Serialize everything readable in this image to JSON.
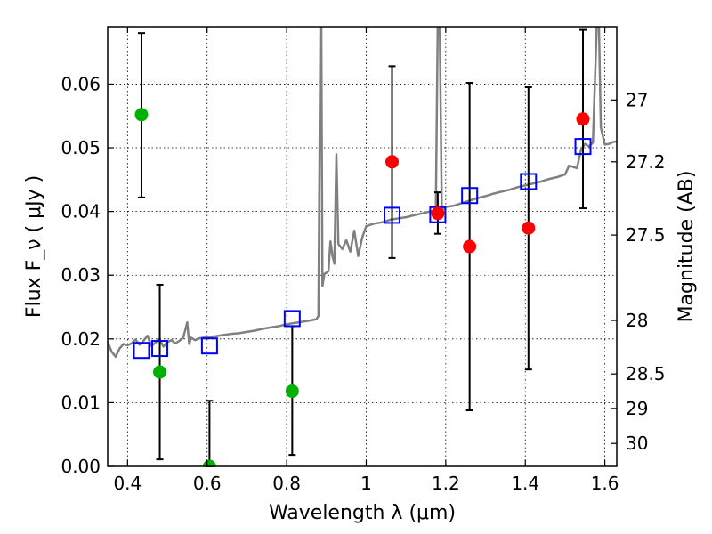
{
  "chart_data": {
    "type": "scatter",
    "title": "",
    "xlabel": "Wavelength  λ (μm)",
    "ylabel": "Flux  F_ν  ( μJy )",
    "ylabel_right": "Magnitude (AB)",
    "xlim": [
      0.35,
      1.63
    ],
    "ylim": [
      0.0,
      0.069
    ],
    "grid": true,
    "x_ticks": [
      {
        "value": 0.4,
        "label": "0.4"
      },
      {
        "value": 0.6,
        "label": "0.6"
      },
      {
        "value": 0.8,
        "label": "0.8"
      },
      {
        "value": 1.0,
        "label": "1"
      },
      {
        "value": 1.2,
        "label": "1.2"
      },
      {
        "value": 1.4,
        "label": "1.4"
      },
      {
        "value": 1.6,
        "label": "1.6"
      }
    ],
    "y_ticks": [
      {
        "value": 0.0,
        "label": "0.00"
      },
      {
        "value": 0.01,
        "label": "0.01"
      },
      {
        "value": 0.02,
        "label": "0.02"
      },
      {
        "value": 0.03,
        "label": "0.03"
      },
      {
        "value": 0.04,
        "label": "0.04"
      },
      {
        "value": 0.05,
        "label": "0.05"
      },
      {
        "value": 0.06,
        "label": "0.06"
      }
    ],
    "mag_ticks": [
      {
        "label": "27",
        "flux": 0.0575
      },
      {
        "label": "27.2",
        "flux": 0.0478
      },
      {
        "label": "27.5",
        "flux": 0.0363
      },
      {
        "label": "28",
        "flux": 0.0229
      },
      {
        "label": "28.5",
        "flux": 0.0145
      },
      {
        "label": "29",
        "flux": 0.0091
      },
      {
        "label": "30",
        "flux": 0.0036
      }
    ],
    "series": [
      {
        "name": "detections-red",
        "color": "#ff0000",
        "points": [
          {
            "x": 1.065,
            "y": 0.0478
          },
          {
            "x": 1.18,
            "y": 0.0397
          },
          {
            "x": 1.26,
            "y": 0.0345
          },
          {
            "x": 1.408,
            "y": 0.0374
          },
          {
            "x": 1.545,
            "y": 0.0545
          }
        ]
      },
      {
        "name": "detections-green",
        "color": "#00b000",
        "points": [
          {
            "x": 0.435,
            "y": 0.0552
          },
          {
            "x": 0.481,
            "y": 0.0148
          },
          {
            "x": 0.606,
            "y": 0.0
          },
          {
            "x": 0.814,
            "y": 0.0118
          }
        ]
      },
      {
        "name": "model-boxes",
        "color": "#0000ff",
        "points": [
          {
            "x": 0.435,
            "y": 0.0182
          },
          {
            "x": 0.481,
            "y": 0.0185
          },
          {
            "x": 0.606,
            "y": 0.0189
          },
          {
            "x": 0.814,
            "y": 0.0232
          },
          {
            "x": 1.065,
            "y": 0.0394
          },
          {
            "x": 1.18,
            "y": 0.0395
          },
          {
            "x": 1.26,
            "y": 0.0425
          },
          {
            "x": 1.408,
            "y": 0.0447
          },
          {
            "x": 1.545,
            "y": 0.0502
          }
        ]
      }
    ],
    "error_bars": [
      {
        "x": 0.435,
        "low": 0.0422,
        "high": 0.068
      },
      {
        "x": 0.481,
        "low": 0.0011,
        "high": 0.0285
      },
      {
        "x": 0.606,
        "low": 0.0,
        "high": 0.0103
      },
      {
        "x": 0.814,
        "low": 0.0018,
        "high": 0.022
      },
      {
        "x": 1.065,
        "low": 0.0327,
        "high": 0.0628
      },
      {
        "x": 1.18,
        "low": 0.0365,
        "high": 0.043
      },
      {
        "x": 1.26,
        "low": 0.0088,
        "high": 0.0602
      },
      {
        "x": 1.408,
        "low": 0.0152,
        "high": 0.0595
      },
      {
        "x": 1.545,
        "low": 0.0405,
        "high": 0.0685
      }
    ],
    "spectrum": {
      "name": "model-spectrum",
      "color": "#808080",
      "x": [
        0.35,
        0.36,
        0.37,
        0.38,
        0.39,
        0.4,
        0.41,
        0.42,
        0.43,
        0.44,
        0.45,
        0.46,
        0.47,
        0.48,
        0.49,
        0.5,
        0.51,
        0.52,
        0.53,
        0.54,
        0.55,
        0.555,
        0.56,
        0.57,
        0.58,
        0.6,
        0.62,
        0.64,
        0.66,
        0.68,
        0.7,
        0.72,
        0.74,
        0.76,
        0.78,
        0.8,
        0.82,
        0.84,
        0.86,
        0.875,
        0.88,
        0.885,
        0.887,
        0.89,
        0.895,
        0.9,
        0.905,
        0.91,
        0.915,
        0.92,
        0.925,
        0.93,
        0.94,
        0.95,
        0.96,
        0.97,
        0.98,
        0.99,
        1.0,
        1.02,
        1.04,
        1.06,
        1.08,
        1.1,
        1.12,
        1.14,
        1.16,
        1.175,
        1.18,
        1.185,
        1.19,
        1.2,
        1.22,
        1.24,
        1.26,
        1.28,
        1.3,
        1.32,
        1.34,
        1.36,
        1.38,
        1.4,
        1.42,
        1.44,
        1.46,
        1.48,
        1.5,
        1.51,
        1.52,
        1.53,
        1.54,
        1.55,
        1.56,
        1.57,
        1.58,
        1.585,
        1.59,
        1.6,
        1.61,
        1.62,
        1.63
      ],
      "y": [
        0.0195,
        0.018,
        0.0172,
        0.0185,
        0.0192,
        0.019,
        0.0193,
        0.0199,
        0.0191,
        0.0197,
        0.0205,
        0.0189,
        0.0194,
        0.02,
        0.0188,
        0.0195,
        0.0198,
        0.0193,
        0.0197,
        0.0202,
        0.0226,
        0.0192,
        0.0202,
        0.0198,
        0.0201,
        0.0203,
        0.0204,
        0.0206,
        0.0208,
        0.0209,
        0.0211,
        0.0213,
        0.0216,
        0.0218,
        0.022,
        0.0223,
        0.0225,
        0.0227,
        0.0229,
        0.0231,
        0.0236,
        0.0699,
        0.0699,
        0.0283,
        0.0302,
        0.0304,
        0.0306,
        0.0353,
        0.0331,
        0.0318,
        0.049,
        0.0349,
        0.0341,
        0.0355,
        0.0337,
        0.037,
        0.033,
        0.0359,
        0.0377,
        0.0381,
        0.0383,
        0.0387,
        0.0389,
        0.0391,
        0.0394,
        0.0397,
        0.04,
        0.0401,
        0.0699,
        0.0699,
        0.0402,
        0.0407,
        0.0409,
        0.0413,
        0.0417,
        0.0421,
        0.0424,
        0.0428,
        0.0431,
        0.0434,
        0.0438,
        0.0441,
        0.0444,
        0.0447,
        0.0451,
        0.0454,
        0.0458,
        0.0472,
        0.047,
        0.0468,
        0.0497,
        0.0506,
        0.0502,
        0.0508,
        0.0699,
        0.0699,
        0.0532,
        0.0505,
        0.0506,
        0.0509,
        0.051
      ]
    }
  }
}
